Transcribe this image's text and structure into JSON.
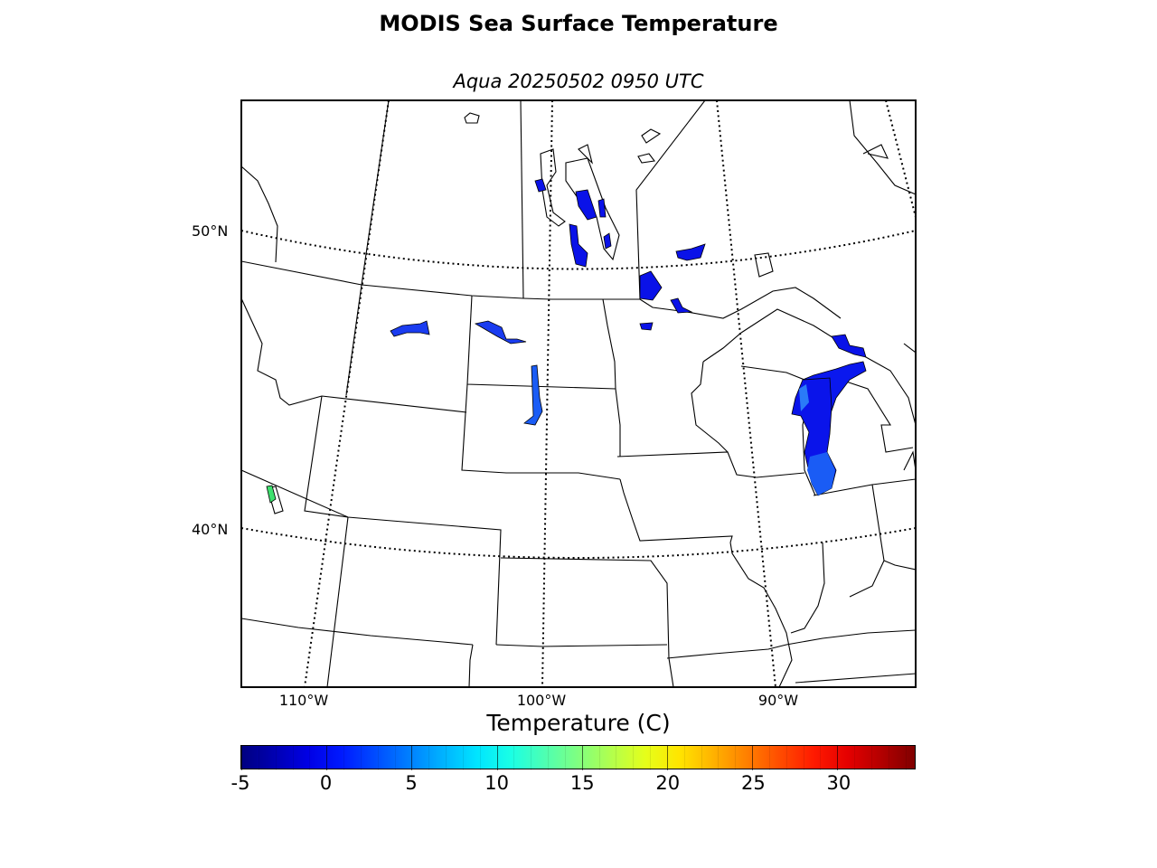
{
  "title": "MODIS Sea Surface Temperature",
  "subtitle": "Aqua 20250502 0950 UTC",
  "map": {
    "lat_labels": [
      "50°N",
      "40°N"
    ],
    "lon_labels": [
      "110°W",
      "100°W",
      "90°W"
    ],
    "water_colors": {
      "cold": "#0a12e8",
      "mid": "#1a5cf5",
      "warm": "#3ee06e"
    }
  },
  "colorbar": {
    "label": "Temperature (C)",
    "vmin": -5,
    "vmax": 34.5,
    "colormap": "jet",
    "ticks": [
      "-5",
      "0",
      "5",
      "10",
      "15",
      "20",
      "25",
      "30"
    ]
  }
}
